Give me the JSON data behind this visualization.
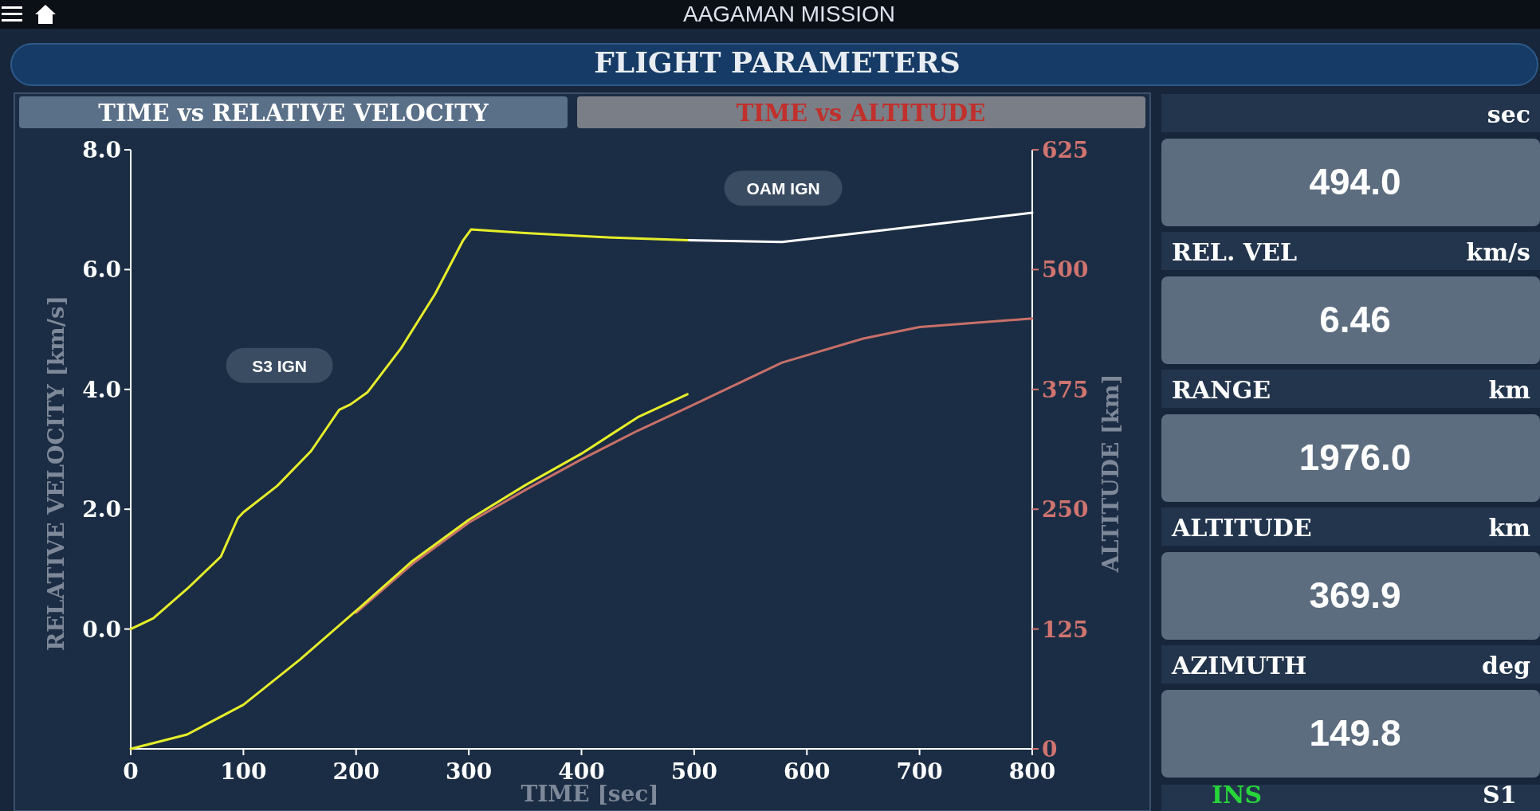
{
  "chart_data": {
    "type": "line",
    "title": "FLIGHT PARAMETERS",
    "xlabel": "TIME [sec]",
    "ylabel": "RELATIVE VELOCITY  [km/s]",
    "y2label": "ALTITUDE [km]",
    "xlim": [
      0,
      800
    ],
    "xticks": [
      0,
      100,
      200,
      300,
      400,
      500,
      600,
      700,
      800
    ],
    "ylim": [
      -2,
      8
    ],
    "yticks": [
      {
        "value": 0,
        "label": "0.0"
      },
      {
        "value": 2,
        "label": "2.0"
      },
      {
        "value": 4,
        "label": "4.0"
      },
      {
        "value": 6,
        "label": "6.0"
      },
      {
        "value": 8,
        "label": "8.0"
      }
    ],
    "y2lim": [
      0,
      625
    ],
    "y2ticks": [
      0,
      125,
      250,
      375,
      500,
      625
    ],
    "grid": false,
    "marker": "none",
    "line_style": "solid",
    "series": [
      {
        "color": "#ffffff",
        "x": [
          494,
          578,
          800
        ],
        "values": [
          6.49,
          6.46,
          6.95
        ]
      },
      {
        "color": "#e6ee2a",
        "x": [
          0,
          20,
          50,
          80,
          95,
          100,
          130,
          160,
          185,
          195,
          210,
          240,
          270,
          295,
          302,
          350,
          420,
          494
        ],
        "values": [
          0,
          0.18,
          0.67,
          1.21,
          1.85,
          1.95,
          2.39,
          2.97,
          3.66,
          3.75,
          3.95,
          4.69,
          5.59,
          6.49,
          6.67,
          6.61,
          6.54,
          6.49
        ]
      },
      {
        "color": "#c87068",
        "axis": "y2",
        "x": [
          200,
          250,
          300,
          350,
          400,
          450,
          494,
          578,
          650,
          700,
          800
        ],
        "values": [
          142,
          193,
          236,
          270,
          302,
          332,
          356,
          403,
          428,
          440,
          449
        ]
      },
      {
        "color": "#e6ee2a",
        "axis": "y2",
        "x": [
          0,
          50,
          100,
          150,
          200,
          250,
          300,
          350,
          400,
          450,
          494
        ],
        "values": [
          0,
          15,
          46,
          93,
          144,
          196,
          239,
          275,
          308,
          346,
          370
        ]
      }
    ],
    "annotations": [
      "AAGAMAN MISSION",
      "TIME vs RELATIVE VELOCITY",
      "TIME vs ALTITUDE",
      "sec",
      "494.0",
      "REL. VEL",
      "km/s",
      "6.46",
      "RANGE",
      "km",
      "1976.0",
      "ALTITUDE",
      "km",
      "369.9",
      "AZIMUTH",
      "deg",
      "149.8",
      "INS",
      "S1",
      "S3 IGN",
      "OAM IGN"
    ]
  }
}
